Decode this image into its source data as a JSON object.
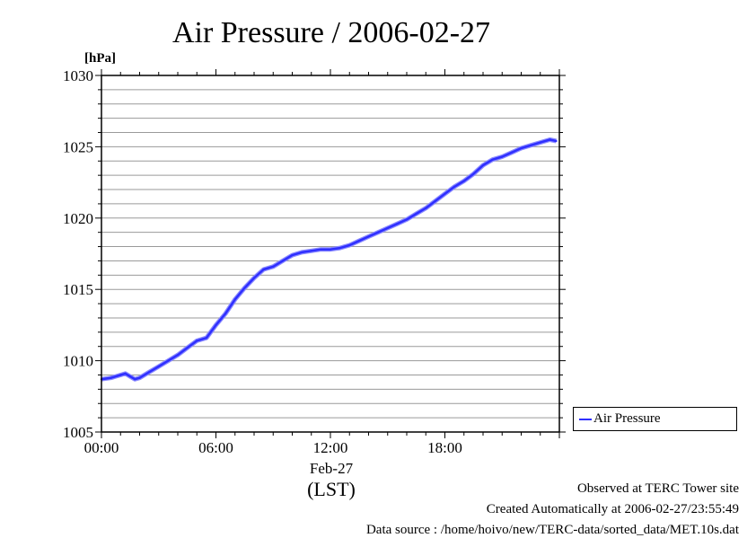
{
  "chart_data": {
    "type": "line",
    "title": "Air Pressure / 2006-02-27",
    "ylabel": "[hPa]",
    "xlabel": "(LST)",
    "date_label": "Feb-27",
    "ylim": [
      1005,
      1030
    ],
    "xlim": [
      "00:00",
      "24:00"
    ],
    "y_ticks": [
      1005,
      1010,
      1015,
      1020,
      1025,
      1030
    ],
    "x_ticks": [
      "00:00",
      "06:00",
      "12:00",
      "18:00"
    ],
    "grid": true,
    "legend_position": "right",
    "series": [
      {
        "name": "Air Pressure",
        "color": "#2f2fff",
        "x": [
          "00:00",
          "00:30",
          "01:00",
          "01:15",
          "01:30",
          "01:45",
          "02:00",
          "02:30",
          "03:00",
          "03:30",
          "04:00",
          "04:30",
          "05:00",
          "05:30",
          "06:00",
          "06:30",
          "07:00",
          "07:30",
          "08:00",
          "08:30",
          "09:00",
          "09:30",
          "10:00",
          "10:30",
          "11:00",
          "11:30",
          "12:00",
          "12:30",
          "13:00",
          "13:30",
          "14:00",
          "14:30",
          "15:00",
          "15:30",
          "16:00",
          "16:30",
          "17:00",
          "17:30",
          "18:00",
          "18:30",
          "19:00",
          "19:30",
          "20:00",
          "20:30",
          "21:00",
          "21:30",
          "22:00",
          "22:30",
          "23:00",
          "23:30",
          "23:50"
        ],
        "values": [
          1008.7,
          1008.8,
          1009.0,
          1009.1,
          1008.9,
          1008.7,
          1008.8,
          1009.2,
          1009.6,
          1010.0,
          1010.4,
          1010.9,
          1011.4,
          1011.6,
          1012.5,
          1013.3,
          1014.3,
          1015.1,
          1015.8,
          1016.4,
          1016.6,
          1017.0,
          1017.4,
          1017.6,
          1017.7,
          1017.8,
          1017.8,
          1017.9,
          1018.1,
          1018.4,
          1018.7,
          1019.0,
          1019.3,
          1019.6,
          1019.9,
          1020.3,
          1020.7,
          1021.2,
          1021.7,
          1022.2,
          1022.6,
          1023.1,
          1023.7,
          1024.1,
          1024.3,
          1024.6,
          1024.9,
          1025.1,
          1025.3,
          1025.5,
          1025.4
        ]
      }
    ]
  },
  "footnotes": {
    "observed": "Observed at TERC Tower site",
    "created": "Created Automatically at 2006-02-27/23:55:49",
    "source": "Data source : /home/hoivo/new/TERC-data/sorted_data/MET.10s.dat"
  }
}
